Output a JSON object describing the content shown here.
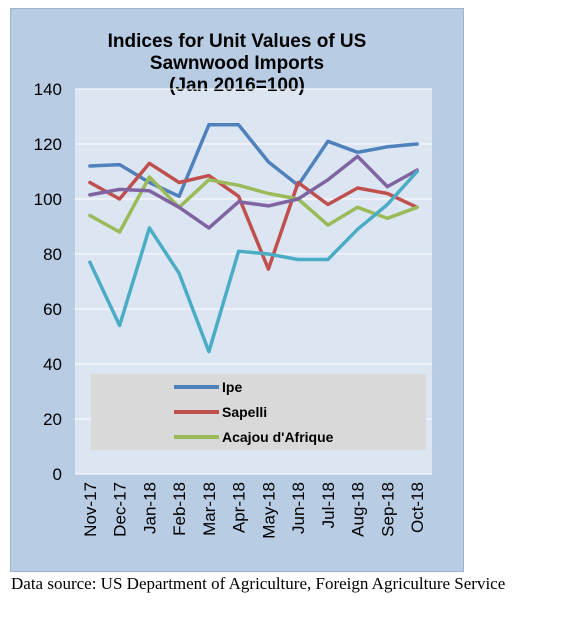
{
  "chart_data": {
    "type": "line",
    "title_lines": [
      "Indices for Unit Values of US",
      "Sawnwood Imports",
      "(Jan 2016=100)"
    ],
    "xlabel": "",
    "ylabel": "",
    "ylim": [
      0,
      140
    ],
    "yticks": [
      "0",
      "20",
      "40",
      "60",
      "80",
      "100",
      "120",
      "140"
    ],
    "categories": [
      "Nov-17",
      "Dec-17",
      "Jan-18",
      "Feb-18",
      "Mar-18",
      "Apr-18",
      "May-18",
      "Jun-18",
      "Jul-18",
      "Aug-18",
      "Sep-18",
      "Oct-18"
    ],
    "grid": true,
    "legend_position": "bottom",
    "legend_bg": "#d9d9d9",
    "plot_bg": "#dce6f2",
    "series": [
      {
        "name": "Ipe",
        "color": "#4f81bd",
        "in_legend": true,
        "values": [
          112,
          112.5,
          106,
          101,
          127,
          127,
          113.5,
          105,
          121,
          117,
          119,
          120
        ]
      },
      {
        "name": "Sapelli",
        "color": "#c0504d",
        "in_legend": true,
        "values": [
          106,
          100,
          113,
          106,
          108.5,
          101,
          74.5,
          106,
          98,
          104,
          102,
          97
        ]
      },
      {
        "name": "Acajou d'Afrique",
        "color": "#9bbb59",
        "in_legend": true,
        "values": [
          94,
          88,
          108,
          97,
          107,
          105,
          102,
          100,
          90.5,
          97,
          93,
          97
        ]
      },
      {
        "name": "",
        "color": "#8064a2",
        "in_legend": false,
        "values": [
          101.5,
          103.5,
          103,
          97,
          89.5,
          99,
          97.5,
          100,
          107,
          115.5,
          104.5,
          110.5
        ]
      },
      {
        "name": "",
        "color": "#4bacc6",
        "in_legend": false,
        "values": [
          77,
          54,
          89.5,
          73,
          44.5,
          81,
          80,
          78,
          78,
          89,
          98,
          110
        ]
      }
    ]
  },
  "source_note": "Data source: US Department of Agriculture, Foreign Agriculture Service"
}
